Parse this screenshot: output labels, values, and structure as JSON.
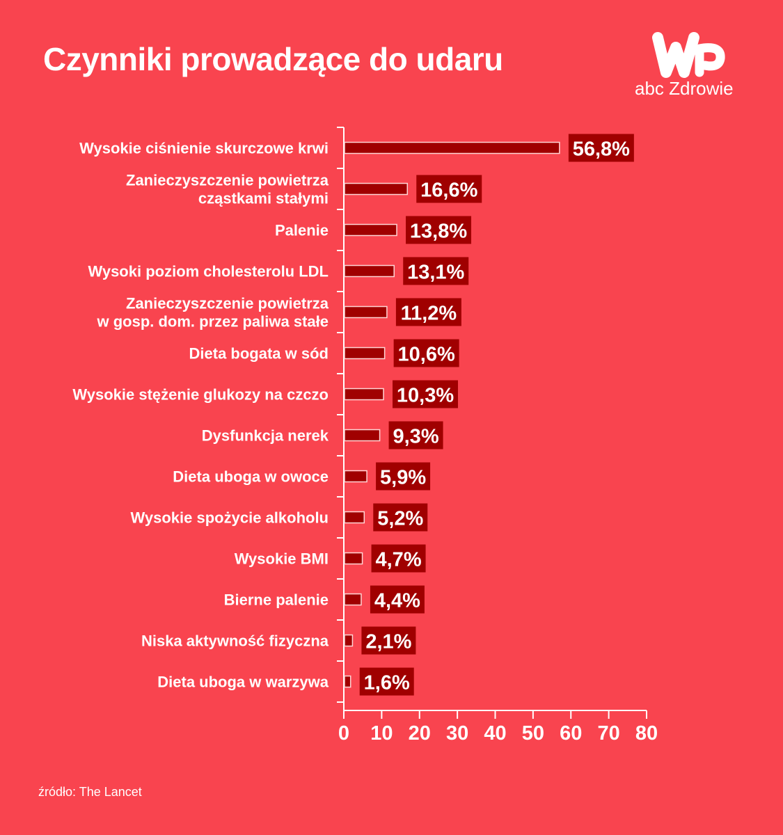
{
  "header": {
    "title": "Czynniki prowadzące do udaru"
  },
  "logo": {
    "text": "abc Zdrowie",
    "mark": "WP"
  },
  "footer": {
    "source": "źródło: The Lancet"
  },
  "colors": {
    "background": "#F9444F",
    "bar": "#A00000",
    "bar_border": "#FFD6D6",
    "label_box": "#A00000",
    "text": "#FFFFFF"
  },
  "chart_data": {
    "type": "bar",
    "orientation": "horizontal",
    "title": "Czynniki prowadzące do udaru",
    "xlabel": "",
    "ylabel": "",
    "xlim": [
      0,
      80
    ],
    "xticks": [
      0,
      10,
      20,
      30,
      40,
      50,
      60,
      70,
      80
    ],
    "grid": false,
    "categories": [
      [
        "Wysokie ciśnienie skurczowe krwi"
      ],
      [
        "Zanieczyszczenie powietrza",
        "cząstkami stałymi"
      ],
      [
        "Palenie"
      ],
      [
        "Wysoki poziom cholesterolu LDL"
      ],
      [
        "Zanieczyszczenie powietrza",
        "w gosp. dom. przez paliwa stałe"
      ],
      [
        "Dieta bogata w sód"
      ],
      [
        "Wysokie stężenie glukozy na czczo"
      ],
      [
        "Dysfunkcja nerek"
      ],
      [
        "Dieta uboga w owoce"
      ],
      [
        "Wysokie spożycie alkoholu"
      ],
      [
        "Wysokie BMI"
      ],
      [
        "Bierne palenie"
      ],
      [
        "Niska aktywność fizyczna"
      ],
      [
        "Dieta uboga w warzywa"
      ]
    ],
    "values": [
      56.8,
      16.6,
      13.8,
      13.1,
      11.2,
      10.6,
      10.3,
      9.3,
      5.9,
      5.2,
      4.7,
      4.4,
      2.1,
      1.6
    ],
    "data_labels": [
      "56,8%",
      "16,6%",
      "13,8%",
      "13,1%",
      "11,2%",
      "10,6%",
      "10,3%",
      "9,3%",
      "5,9%",
      "5,2%",
      "4,7%",
      "4,4%",
      "2,1%",
      "1,6%"
    ]
  }
}
